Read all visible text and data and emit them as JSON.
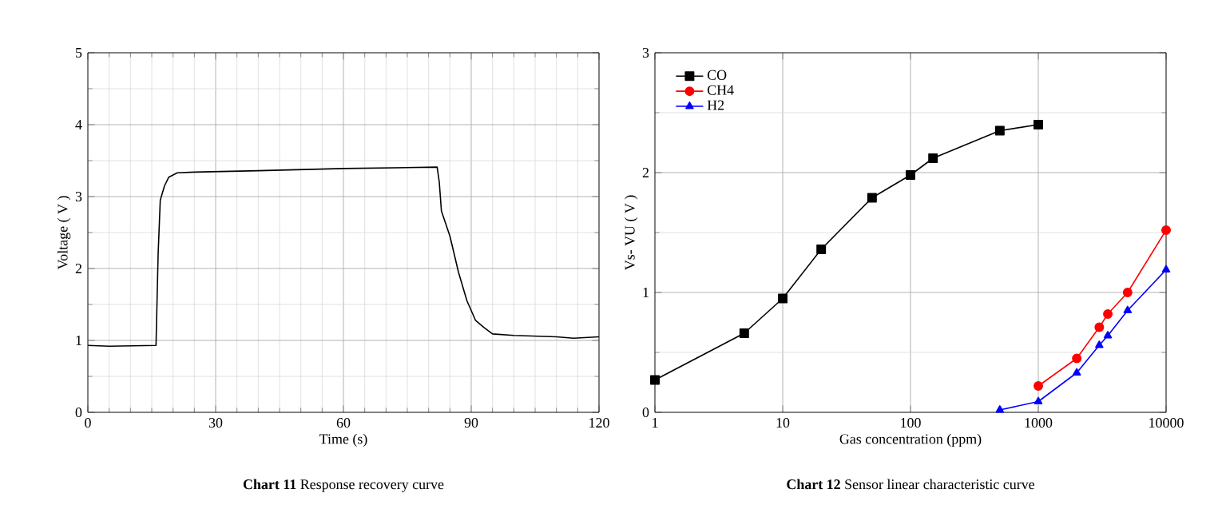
{
  "chart_data": [
    {
      "type": "line",
      "title": "**Chart 11**    Response recovery curve",
      "xlabel": "Time (s)",
      "ylabel": "Voltage ( V )",
      "color": "#000000",
      "grid": true,
      "marker": "none",
      "x": [
        0,
        5,
        16,
        16.5,
        17,
        18,
        19,
        21,
        25,
        40,
        60,
        82,
        82.5,
        83,
        85,
        87,
        89,
        91,
        93,
        95,
        100,
        110,
        114,
        120
      ],
      "values": [
        0.93,
        0.92,
        0.93,
        2.2,
        2.95,
        3.15,
        3.27,
        3.33,
        3.34,
        3.36,
        3.39,
        3.41,
        3.2,
        2.8,
        2.45,
        1.95,
        1.55,
        1.28,
        1.18,
        1.09,
        1.07,
        1.05,
        1.03,
        1.05
      ],
      "xlim": [
        0,
        120
      ],
      "ylim": [
        0,
        5
      ],
      "xticks": [
        0,
        30,
        60,
        90,
        120
      ],
      "yticks": [
        0,
        1,
        2,
        3,
        4,
        5
      ]
    },
    {
      "type": "line",
      "title": "**Chart 12**    Sensor linear characteristic curve",
      "xlabel": "Gas concentration (ppm)",
      "ylabel": "Vs- VU ( V )",
      "log": "x",
      "grid": true,
      "legend": "top left",
      "xlim": [
        1,
        10000
      ],
      "ylim": [
        0,
        3
      ],
      "xticks": [
        1,
        10,
        100,
        1000,
        10000
      ],
      "yticks": [
        0,
        1,
        2,
        3
      ],
      "series": [
        {
          "name": "CO",
          "color": "#000000",
          "marker": "square",
          "x": [
            1,
            5,
            10,
            20,
            50,
            100,
            150,
            500,
            1000
          ],
          "values": [
            0.27,
            0.66,
            0.95,
            1.36,
            1.79,
            1.98,
            2.12,
            2.35,
            2.4
          ]
        },
        {
          "name": "CH4",
          "color": "#ff0000",
          "marker": "circle",
          "x": [
            1000,
            2000,
            3000,
            3500,
            5000,
            10000
          ],
          "values": [
            0.22,
            0.45,
            0.71,
            0.82,
            1.0,
            1.52
          ]
        },
        {
          "name": "H2",
          "color": "#0000ff",
          "marker": "triangle",
          "x": [
            500,
            1000,
            2000,
            3000,
            3500,
            5000,
            10000
          ],
          "values": [
            0.02,
            0.09,
            0.33,
            0.56,
            0.64,
            0.85,
            1.19
          ]
        }
      ]
    }
  ]
}
